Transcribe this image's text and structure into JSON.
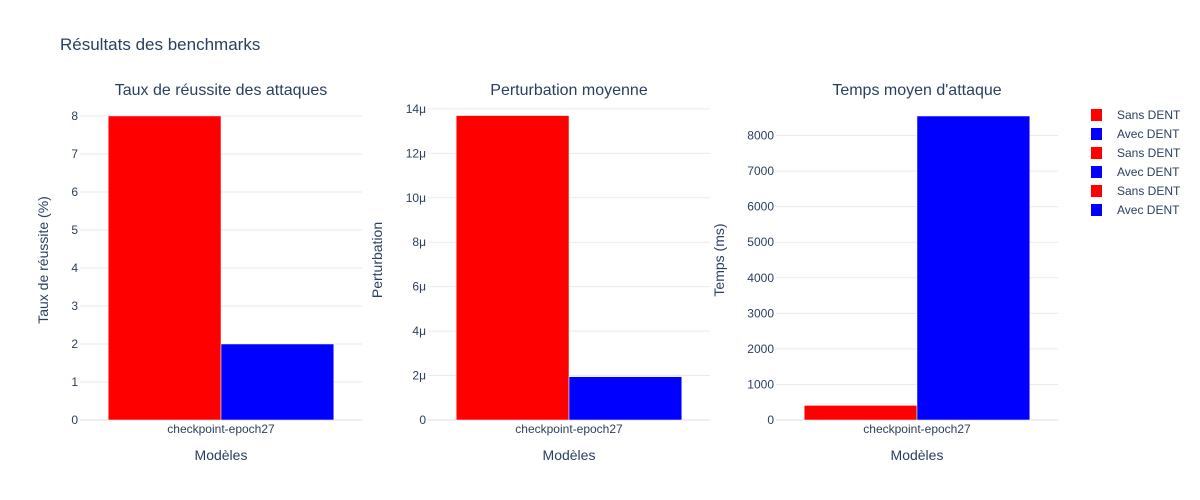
{
  "title": "Résultats des benchmarks",
  "colors": {
    "sans": "#ff0000",
    "avec": "#0000ff",
    "grid": "#eaeaea",
    "text": "#2a3f5f"
  },
  "legend": [
    {
      "label": "Sans DENT",
      "color": "#ff0000"
    },
    {
      "label": "Avec DENT",
      "color": "#0000ff"
    },
    {
      "label": "Sans DENT",
      "color": "#ff0000"
    },
    {
      "label": "Avec DENT",
      "color": "#0000ff"
    },
    {
      "label": "Sans DENT",
      "color": "#ff0000"
    },
    {
      "label": "Avec DENT",
      "color": "#0000ff"
    }
  ],
  "chart_data": [
    {
      "type": "bar",
      "title": "Taux de réussite des attaques",
      "xlabel": "Modèles",
      "ylabel": "Taux de réussite (%)",
      "categories": [
        "checkpoint-epoch27"
      ],
      "series": [
        {
          "name": "Sans DENT",
          "color": "#ff0000",
          "values": [
            8
          ]
        },
        {
          "name": "Avec DENT",
          "color": "#0000ff",
          "values": [
            2
          ]
        }
      ],
      "ylim": [
        0,
        8.42
      ],
      "yticks": [
        0,
        1,
        2,
        3,
        4,
        5,
        6,
        7,
        8
      ],
      "ytick_labels": [
        "0",
        "1",
        "2",
        "3",
        "4",
        "5",
        "6",
        "7",
        "8"
      ]
    },
    {
      "type": "bar",
      "title": "Perturbation moyenne",
      "xlabel": "Modèles",
      "ylabel": "Perturbation",
      "categories": [
        "checkpoint-epoch27"
      ],
      "series": [
        {
          "name": "Sans DENT",
          "color": "#ff0000",
          "values": [
            1.37e-05
          ]
        },
        {
          "name": "Avec DENT",
          "color": "#0000ff",
          "values": [
            1.95e-06
          ]
        }
      ],
      "ylim": [
        0,
        1.44e-05
      ],
      "yticks": [
        0,
        2e-06,
        4e-06,
        6e-06,
        8e-06,
        1e-05,
        1.2e-05,
        1.4e-05
      ],
      "ytick_labels": [
        "0",
        "2μ",
        "4μ",
        "6μ",
        "8μ",
        "10μ",
        "12μ",
        "14μ"
      ]
    },
    {
      "type": "bar",
      "title": "Temps moyen d'attaque",
      "xlabel": "Modèles",
      "ylabel": "Temps (ms)",
      "categories": [
        "checkpoint-epoch27"
      ],
      "series": [
        {
          "name": "Sans DENT",
          "color": "#ff0000",
          "values": [
            410
          ]
        },
        {
          "name": "Avec DENT",
          "color": "#0000ff",
          "values": [
            8550
          ]
        }
      ],
      "ylim": [
        0,
        9000
      ],
      "yticks": [
        0,
        1000,
        2000,
        3000,
        4000,
        5000,
        6000,
        7000,
        8000
      ],
      "ytick_labels": [
        "0",
        "1000",
        "2000",
        "3000",
        "4000",
        "5000",
        "6000",
        "7000",
        "8000"
      ]
    }
  ]
}
